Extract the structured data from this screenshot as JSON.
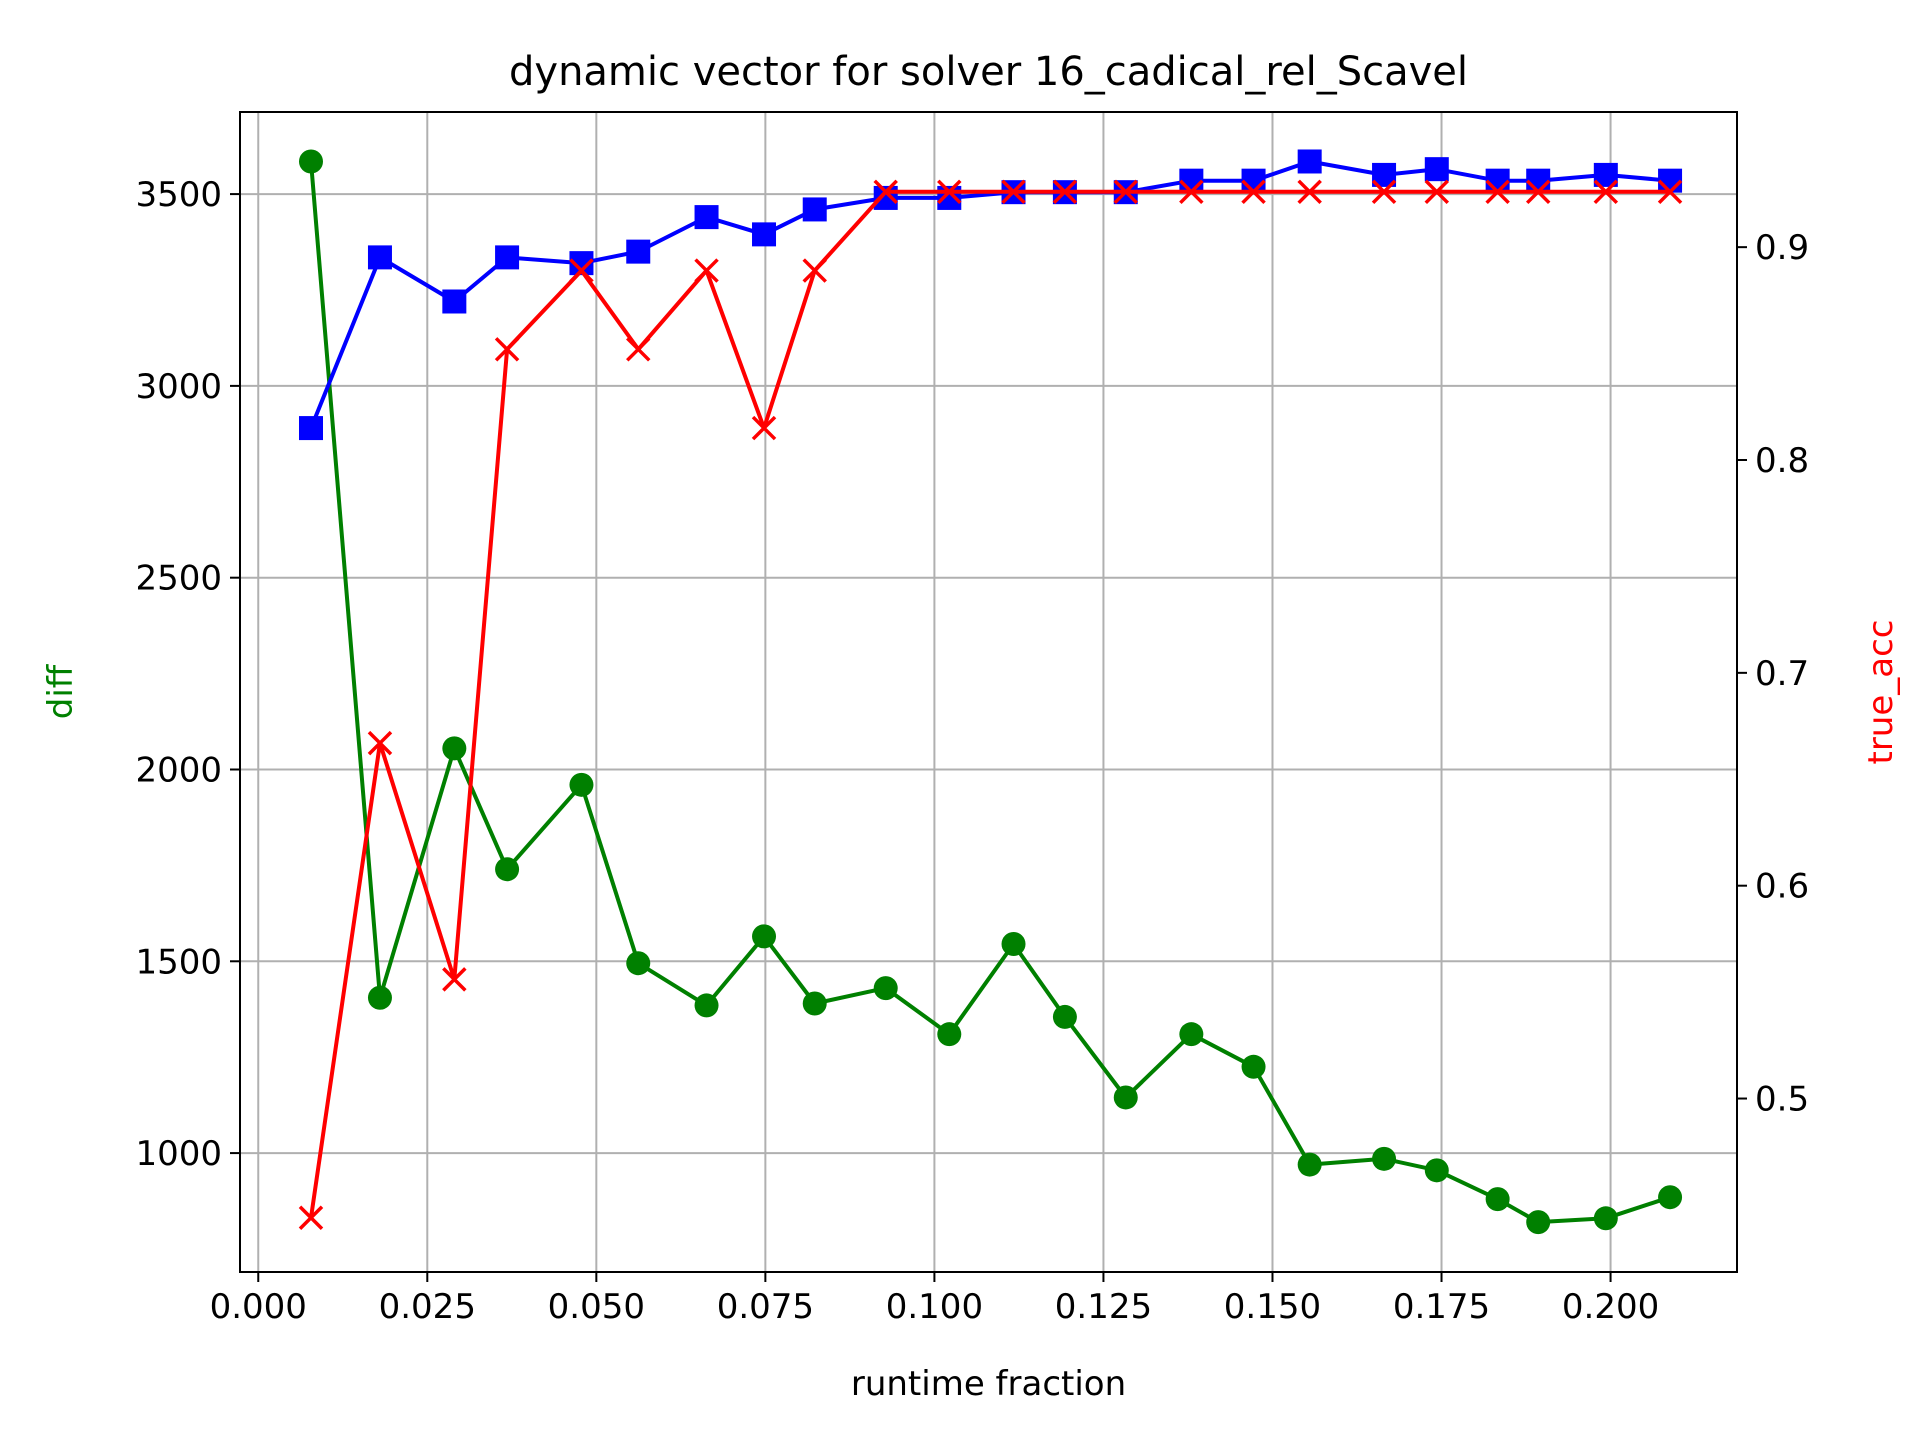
{
  "chart_data": {
    "type": "line",
    "title": "dynamic vector for solver 16_cadical_rel_Scavel",
    "xlabel": "runtime fraction",
    "ylabel_left": "diff",
    "ylabel_right": "true_acc",
    "xlim": [
      -0.0027,
      0.2187
    ],
    "ylim_left": [
      690,
      3714
    ],
    "ylim_right": [
      0.4185,
      0.9635
    ],
    "xticks": [
      0.0,
      0.025,
      0.05,
      0.075,
      0.1,
      0.125,
      0.15,
      0.175,
      0.2
    ],
    "xtick_labels": [
      "0.000",
      "0.025",
      "0.050",
      "0.075",
      "0.100",
      "0.125",
      "0.150",
      "0.175",
      "0.200"
    ],
    "yticks_left": [
      1000,
      1500,
      2000,
      2500,
      3000,
      3500
    ],
    "ytick_labels_left": [
      "1000",
      "1500",
      "2000",
      "2500",
      "3000",
      "3500"
    ],
    "yticks_right": [
      0.5,
      0.6,
      0.7,
      0.8,
      0.9
    ],
    "ytick_labels_right": [
      "0.5",
      "0.6",
      "0.7",
      "0.8",
      "0.9"
    ],
    "grid": true,
    "label_colors": {
      "left": "#008000",
      "right": "#ff0000"
    },
    "x": [
      0.0078,
      0.018,
      0.029,
      0.0368,
      0.0478,
      0.0562,
      0.0663,
      0.0748,
      0.0823,
      0.0928,
      0.1022,
      0.1117,
      0.1193,
      0.1283,
      0.138,
      0.1472,
      0.1555,
      0.1665,
      0.1743,
      0.1833,
      0.1893,
      0.1993,
      0.2088
    ],
    "series": [
      {
        "axis": "left",
        "color": "#008000",
        "marker": "circle",
        "values": [
          3585,
          1405,
          2055,
          1740,
          1960,
          1495,
          1385,
          1565,
          1390,
          1430,
          1310,
          1545,
          1355,
          1145,
          1310,
          1225,
          970,
          985,
          955,
          880,
          820,
          830,
          885
        ]
      },
      {
        "axis": "left",
        "color": "#0000ff",
        "marker": "square",
        "values": [
          2890,
          3335,
          3220,
          3335,
          3320,
          3350,
          3440,
          3395,
          3460,
          3490,
          3490,
          3505,
          3505,
          3505,
          3535,
          3535,
          3585,
          3550,
          3565,
          3535,
          3535,
          3550,
          3535
        ]
      },
      {
        "axis": "right",
        "color": "#ff0000",
        "marker": "x",
        "values": [
          0.444,
          0.667,
          0.556,
          0.852,
          0.889,
          0.852,
          0.889,
          0.815,
          0.889,
          0.926,
          0.926,
          0.926,
          0.926,
          0.926,
          0.926,
          0.926,
          0.926,
          0.926,
          0.926,
          0.926,
          0.926,
          0.926,
          0.926
        ]
      }
    ]
  }
}
